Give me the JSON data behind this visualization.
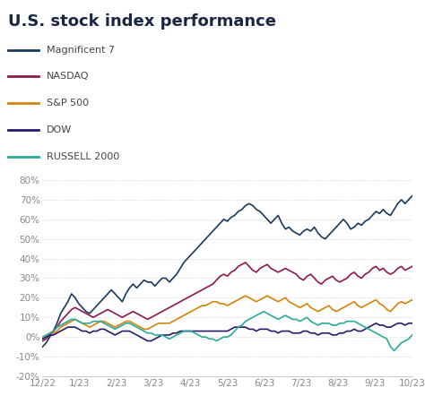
{
  "title": "U.S. stock index performance",
  "title_fontsize": 13,
  "title_fontweight": "bold",
  "title_color": "#1a2744",
  "background_color": "#ffffff",
  "ylim": [
    -20,
    85
  ],
  "yticks": [
    -20,
    -10,
    0,
    10,
    20,
    30,
    40,
    50,
    60,
    70,
    80
  ],
  "xtick_labels": [
    "12/22",
    "1/23",
    "2/23",
    "3/23",
    "4/23",
    "5/23",
    "6/23",
    "7/23",
    "8/23",
    "9/23",
    "10/23"
  ],
  "series": {
    "Magnificent 7": {
      "color": "#1a3a5c",
      "linewidth": 1.2,
      "data": [
        -5,
        -3,
        0,
        3,
        7,
        12,
        15,
        18,
        22,
        20,
        17,
        15,
        13,
        12,
        14,
        16,
        18,
        20,
        22,
        24,
        22,
        20,
        18,
        22,
        25,
        27,
        25,
        27,
        29,
        28,
        28,
        26,
        28,
        30,
        30,
        28,
        30,
        32,
        35,
        38,
        40,
        42,
        44,
        46,
        48,
        50,
        52,
        54,
        56,
        58,
        60,
        59,
        61,
        62,
        64,
        65,
        67,
        68,
        67,
        65,
        64,
        62,
        60,
        58,
        60,
        62,
        58,
        55,
        56,
        54,
        53,
        52,
        54,
        55,
        54,
        56,
        53,
        51,
        50,
        52,
        54,
        56,
        58,
        60,
        58,
        55,
        56,
        58,
        57,
        59,
        60,
        62,
        64,
        63,
        65,
        63,
        62,
        65,
        68,
        70,
        68,
        70,
        72
      ]
    },
    "NASDAQ": {
      "color": "#8b1a4a",
      "linewidth": 1.2,
      "data": [
        -2,
        -1,
        1,
        3,
        5,
        8,
        10,
        12,
        14,
        15,
        14,
        13,
        12,
        11,
        10,
        11,
        12,
        13,
        14,
        13,
        12,
        11,
        10,
        11,
        12,
        13,
        12,
        11,
        10,
        9,
        10,
        11,
        12,
        13,
        14,
        15,
        16,
        17,
        18,
        19,
        20,
        21,
        22,
        23,
        24,
        25,
        26,
        27,
        29,
        31,
        32,
        31,
        33,
        34,
        36,
        37,
        38,
        36,
        34,
        33,
        35,
        36,
        37,
        35,
        34,
        33,
        34,
        35,
        34,
        33,
        32,
        30,
        29,
        31,
        32,
        30,
        28,
        27,
        29,
        30,
        31,
        29,
        28,
        29,
        30,
        32,
        33,
        31,
        30,
        32,
        33,
        35,
        36,
        34,
        35,
        33,
        32,
        33,
        35,
        36,
        34,
        35,
        36
      ]
    },
    "S&P 500": {
      "color": "#d4820a",
      "linewidth": 1.2,
      "data": [
        -1,
        0,
        1,
        2,
        3,
        5,
        6,
        7,
        8,
        9,
        8,
        7,
        6,
        5,
        6,
        7,
        8,
        8,
        7,
        6,
        5,
        6,
        7,
        8,
        8,
        7,
        6,
        5,
        4,
        4,
        5,
        6,
        7,
        7,
        7,
        7,
        8,
        9,
        10,
        11,
        12,
        13,
        14,
        15,
        16,
        16,
        17,
        18,
        18,
        17,
        17,
        16,
        17,
        18,
        19,
        20,
        21,
        20,
        19,
        18,
        19,
        20,
        21,
        20,
        19,
        18,
        19,
        20,
        18,
        17,
        16,
        15,
        16,
        17,
        15,
        14,
        13,
        14,
        15,
        16,
        14,
        13,
        14,
        15,
        16,
        17,
        18,
        16,
        15,
        16,
        17,
        18,
        19,
        17,
        16,
        14,
        13,
        15,
        17,
        18,
        17,
        18,
        19
      ]
    },
    "DOW": {
      "color": "#2a1a6e",
      "linewidth": 1.2,
      "data": [
        -1,
        0,
        1,
        1,
        2,
        3,
        4,
        5,
        5,
        5,
        4,
        3,
        3,
        2,
        3,
        3,
        4,
        4,
        3,
        2,
        1,
        2,
        3,
        3,
        3,
        2,
        1,
        0,
        -1,
        -2,
        -2,
        -1,
        0,
        1,
        1,
        1,
        2,
        2,
        3,
        3,
        3,
        3,
        3,
        3,
        3,
        3,
        3,
        3,
        3,
        3,
        3,
        3,
        4,
        5,
        5,
        5,
        5,
        4,
        4,
        3,
        4,
        4,
        4,
        3,
        3,
        2,
        3,
        3,
        3,
        2,
        2,
        2,
        3,
        3,
        2,
        2,
        1,
        2,
        2,
        2,
        1,
        1,
        2,
        2,
        3,
        3,
        4,
        3,
        3,
        4,
        5,
        6,
        7,
        6,
        6,
        5,
        5,
        6,
        7,
        7,
        6,
        7,
        7
      ]
    },
    "RUSSELL 2000": {
      "color": "#2aaa98",
      "linewidth": 1.2,
      "data": [
        0,
        1,
        2,
        3,
        5,
        6,
        7,
        8,
        9,
        9,
        8,
        7,
        7,
        7,
        8,
        8,
        8,
        7,
        6,
        5,
        4,
        5,
        6,
        7,
        7,
        6,
        5,
        4,
        3,
        2,
        2,
        1,
        1,
        1,
        0,
        -1,
        0,
        1,
        2,
        3,
        3,
        3,
        2,
        1,
        0,
        0,
        -1,
        -1,
        -2,
        -1,
        0,
        0,
        1,
        3,
        5,
        6,
        8,
        9,
        10,
        11,
        12,
        13,
        12,
        11,
        10,
        9,
        10,
        11,
        10,
        9,
        9,
        8,
        9,
        10,
        8,
        7,
        6,
        7,
        7,
        7,
        6,
        6,
        7,
        7,
        8,
        8,
        8,
        7,
        6,
        5,
        4,
        3,
        2,
        1,
        0,
        -1,
        -5,
        -7,
        -5,
        -3,
        -2,
        -1,
        1
      ]
    }
  },
  "legend_labels": [
    "Magnificent 7",
    "NASDAQ",
    "S&P 500",
    "DOW",
    "RUSSELL 2000"
  ],
  "legend_colors": [
    "#1a3a5c",
    "#8b1a4a",
    "#d4820a",
    "#2a1a6e",
    "#2aaa98"
  ],
  "grid_color": "#cccccc",
  "tick_color": "#888888"
}
